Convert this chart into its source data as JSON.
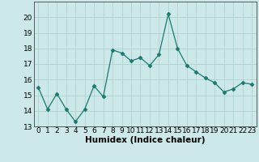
{
  "x": [
    0,
    1,
    2,
    3,
    4,
    5,
    6,
    7,
    8,
    9,
    10,
    11,
    12,
    13,
    14,
    15,
    16,
    17,
    18,
    19,
    20,
    21,
    22,
    23
  ],
  "y": [
    15.5,
    14.1,
    15.1,
    14.1,
    13.3,
    14.1,
    15.6,
    14.9,
    17.9,
    17.7,
    17.2,
    17.4,
    16.9,
    17.6,
    20.2,
    18.0,
    16.9,
    16.5,
    16.1,
    15.8,
    15.2,
    15.4,
    15.8,
    15.7
  ],
  "xlabel": "Humidex (Indice chaleur)",
  "ylim": [
    13,
    21
  ],
  "xlim": [
    -0.5,
    23.5
  ],
  "yticks": [
    13,
    14,
    15,
    16,
    17,
    18,
    19,
    20
  ],
  "xticks": [
    0,
    1,
    2,
    3,
    4,
    5,
    6,
    7,
    8,
    9,
    10,
    11,
    12,
    13,
    14,
    15,
    16,
    17,
    18,
    19,
    20,
    21,
    22,
    23
  ],
  "line_color": "#1a7a6e",
  "marker": "D",
  "marker_size": 2.5,
  "bg_color": "#cce8e8",
  "grid_color": "#aacece",
  "tick_fontsize": 6.5,
  "xlabel_fontsize": 7.5
}
